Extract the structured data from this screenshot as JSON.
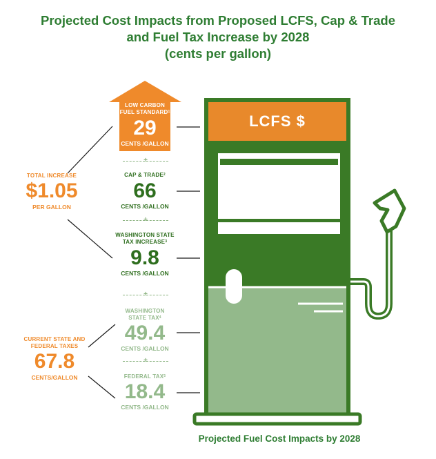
{
  "title": {
    "line1": "Projected Cost Impacts from Proposed LCFS, Cap & Trade",
    "line2": "and Fuel Tax Increase by 2028",
    "line3": "(cents per gallon)"
  },
  "colors": {
    "dark_green": "#3a7a26",
    "light_green": "#93b98b",
    "orange": "#ef8a2b"
  },
  "pump": {
    "sign_label": "LCFS $",
    "caption": "Projected Fuel Cost Impacts by 2028"
  },
  "total_increase": {
    "label": "TOTAL INCREASE",
    "value": "$1.05",
    "unit": "PER GALLON"
  },
  "current_taxes": {
    "label_line1": "CURRENT STATE AND",
    "label_line2": "FEDERAL TAXES",
    "value": "67.8",
    "unit": "CENTS/GALLON"
  },
  "components": {
    "lcfs": {
      "label_line1": "LOW CARBON",
      "label_line2": "FUEL STANDARD",
      "footnote": "1",
      "value": "29",
      "unit": "CENTS /GALLON"
    },
    "cap_trade": {
      "label_line1": "CAP & TRADE",
      "footnote": "2",
      "value": "66",
      "unit": "CENTS /GALLON"
    },
    "wa_tax_increase": {
      "label_line1": "WASHINGTON STATE",
      "label_line2": "TAX INCREASE",
      "footnote": "3",
      "value": "9.8",
      "unit": "CENTS /GALLON"
    },
    "wa_state_tax": {
      "label_line1": "WASHINGTON",
      "label_line2": "STATE TAX",
      "footnote": "4",
      "value": "49.4",
      "unit": "CENTS /GALLON"
    },
    "federal_tax": {
      "label_line1": "FEDERAL TAX",
      "footnote": "5",
      "value": "18.4",
      "unit": "CENTS /GALLON"
    }
  },
  "separator_symbol": "+"
}
